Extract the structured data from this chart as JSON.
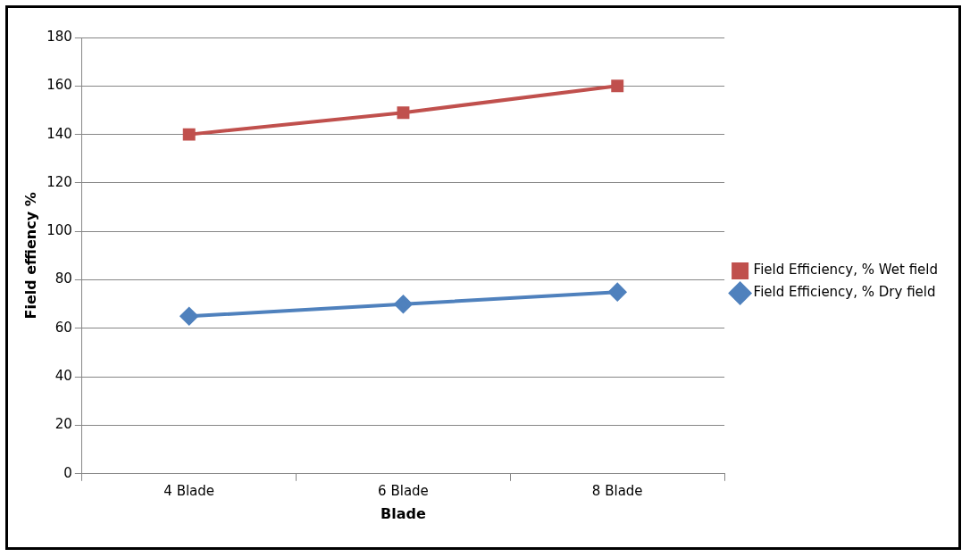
{
  "chart_data": {
    "type": "line",
    "xlabel": "Blade",
    "ylabel": "Field effiency %",
    "categories": [
      "4 Blade",
      "6 Blade",
      "8 Blade"
    ],
    "series": [
      {
        "name": "Field Efficiency, % Wet field",
        "color": "#c0504d",
        "marker": "square",
        "values": [
          140,
          149,
          160
        ]
      },
      {
        "name": "Field Efficiency, % Dry field",
        "color": "#4f81bd",
        "marker": "diamond",
        "values": [
          65,
          70,
          75
        ]
      }
    ],
    "ylim": [
      0,
      180
    ],
    "yticks": [
      0,
      20,
      40,
      60,
      80,
      100,
      120,
      140,
      160,
      180
    ],
    "grid": "y",
    "legend": "right",
    "line_style": "solid"
  }
}
